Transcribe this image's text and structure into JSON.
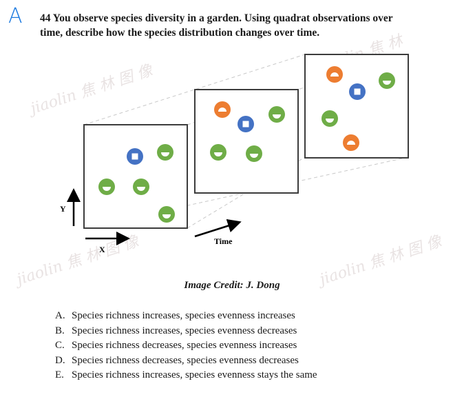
{
  "answer_mark": "A",
  "question": {
    "line1": "44 You observe species diversity in a garden. Using quadrat observations over",
    "line2": "time, describe how the species distribution changes over time."
  },
  "figure": {
    "axis_y_label": "Y",
    "axis_x_label": "X",
    "time_label": "Time",
    "colors": {
      "green": "#6fad47",
      "blue": "#4472c4",
      "orange": "#ed7d31",
      "frame": "#3c3c3c",
      "dash": "#c8c8c8"
    }
  },
  "credit": "Image Credit: J. Dong",
  "options": [
    {
      "letter": "A.",
      "text": "Species richness increases, species evenness increases"
    },
    {
      "letter": "B.",
      "text": "Species richness increases, species evenness decreases"
    },
    {
      "letter": "C.",
      "text": "Species richness decreases, species evenness increases"
    },
    {
      "letter": "D.",
      "text": "Species richness decreases, species evenness decreases"
    },
    {
      "letter": "E.",
      "text": "Species richness increases, species evenness stays the same"
    }
  ]
}
